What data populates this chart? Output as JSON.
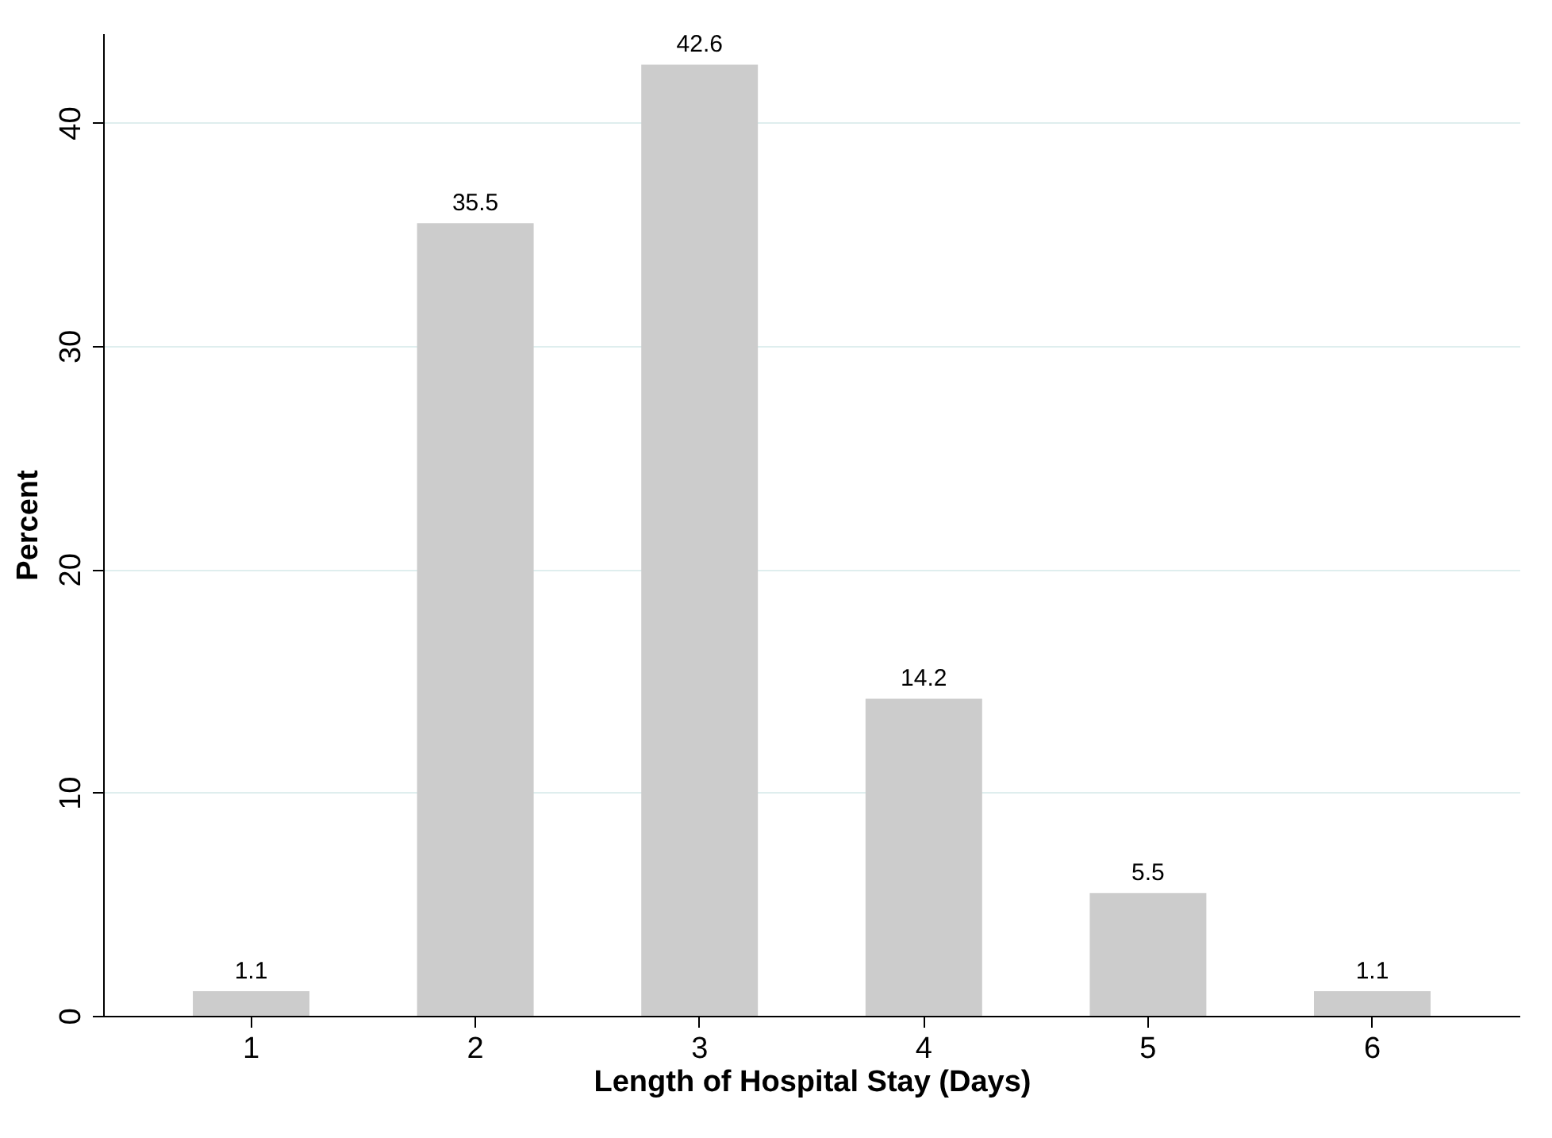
{
  "chart_data": {
    "type": "bar",
    "xlabel": "Length of Hospital Stay (Days)",
    "ylabel": "Percent",
    "categories": [
      "1",
      "2",
      "3",
      "4",
      "5",
      "6"
    ],
    "values": [
      1.1,
      35.5,
      42.6,
      14.2,
      5.5,
      1.1
    ],
    "color": "#cccccc",
    "ylim": [
      0,
      44
    ],
    "yticks": [
      0,
      10,
      20,
      30,
      40
    ],
    "grid": "y",
    "data_labels": true
  }
}
